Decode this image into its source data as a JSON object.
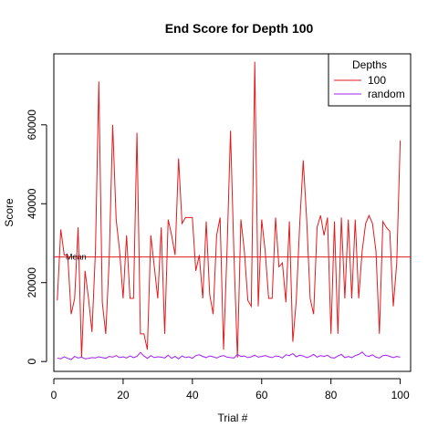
{
  "chart_data": {
    "type": "line",
    "title": "End Score for Depth 100",
    "xlabel": "Trial #",
    "ylabel": "Score",
    "xlim": [
      0,
      103
    ],
    "ylim": [
      -2500,
      78000
    ],
    "xticks": [
      0,
      20,
      40,
      60,
      80,
      100
    ],
    "yticks": [
      0,
      20000,
      40000,
      60000
    ],
    "grid": false,
    "legend": {
      "title": "Depths",
      "placement": "top-right"
    },
    "mean_line": {
      "label": "Mean",
      "value": 26500,
      "color": "#e31a1c"
    },
    "x": [
      1,
      2,
      3,
      4,
      5,
      6,
      7,
      8,
      9,
      10,
      11,
      12,
      13,
      14,
      15,
      16,
      17,
      18,
      19,
      20,
      21,
      22,
      23,
      24,
      25,
      26,
      27,
      28,
      29,
      30,
      31,
      32,
      33,
      34,
      35,
      36,
      37,
      38,
      39,
      40,
      41,
      42,
      43,
      44,
      45,
      46,
      47,
      48,
      49,
      50,
      51,
      52,
      53,
      54,
      55,
      56,
      57,
      58,
      59,
      60,
      61,
      62,
      63,
      64,
      65,
      66,
      67,
      68,
      69,
      70,
      71,
      72,
      73,
      74,
      75,
      76,
      77,
      78,
      79,
      80,
      81,
      82,
      83,
      84,
      85,
      86,
      87,
      88,
      89,
      90,
      91,
      92,
      93,
      94,
      95,
      96,
      97,
      98,
      99,
      100
    ],
    "series": [
      {
        "name": "100",
        "color": "#e31a1c",
        "values": [
          15500,
          33500,
          27000,
          27000,
          12000,
          16000,
          34000,
          1000,
          23000,
          16000,
          7500,
          28000,
          71000,
          15000,
          7000,
          26000,
          60000,
          36000,
          28000,
          16000,
          32000,
          16000,
          16000,
          58000,
          7000,
          7000,
          3000,
          32000,
          24000,
          16000,
          34000,
          7000,
          36000,
          32000,
          27000,
          51500,
          35000,
          36500,
          36500,
          36500,
          23000,
          27000,
          16000,
          35500,
          17000,
          12000,
          32000,
          36500,
          3000,
          28000,
          58500,
          27000,
          1000,
          36000,
          28000,
          15500,
          14000,
          76000,
          14000,
          36000,
          28000,
          16000,
          16000,
          36500,
          24000,
          25000,
          15000,
          35500,
          5000,
          15500,
          35000,
          51000,
          36000,
          16000,
          12000,
          34000,
          37000,
          32000,
          36500,
          7000,
          35500,
          7000,
          36500,
          16000,
          36000,
          16000,
          36000,
          16000,
          28000,
          35000,
          37000,
          35000,
          28000,
          7000,
          35500,
          34000,
          33000,
          14000,
          25000,
          56000
        ]
      },
      {
        "name": "random",
        "color": "#a020f0",
        "values": [
          900,
          700,
          1200,
          800,
          500,
          1300,
          900,
          1100,
          700,
          800,
          1000,
          900,
          1200,
          1000,
          800,
          1300,
          1100,
          1500,
          1000,
          1200,
          900,
          1400,
          1000,
          1300,
          2300,
          1400,
          800,
          1500,
          1000,
          1200,
          1100,
          900,
          1600,
          800,
          1300,
          700,
          1400,
          1000,
          1200,
          800,
          1500,
          1700,
          1300,
          1000,
          1400,
          1200,
          900,
          1300,
          1500,
          1100,
          1000,
          900,
          1800,
          1300,
          1400,
          1000,
          1200,
          1600,
          1100,
          1300,
          1500,
          1200,
          1000,
          1400,
          1300,
          900,
          1700,
          1500,
          2000,
          1200,
          1600,
          1400,
          1000,
          1300,
          1800,
          1100,
          1500,
          1300,
          1600,
          1000,
          900,
          1400,
          1800,
          1000,
          1300,
          1000,
          1500,
          1800,
          2400,
          1500,
          1300,
          1700,
          1100,
          900,
          1500,
          1600,
          1300,
          1000,
          1300,
          1100
        ]
      }
    ]
  }
}
